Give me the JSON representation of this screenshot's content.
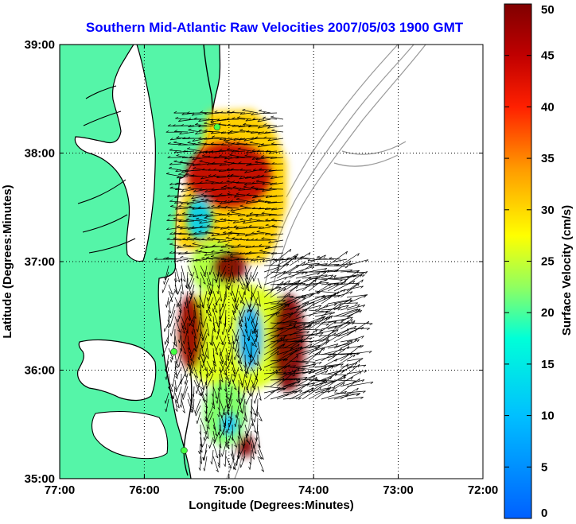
{
  "chart_data": {
    "type": "heatmap",
    "title": "Southern Mid-Atlantic Raw Velocities 2007/05/03 1900 GMT",
    "xlabel": "Longitude (Degrees:Minutes)",
    "ylabel": "Latitude (Degrees:Minutes)",
    "xlim": [
      -77,
      -72
    ],
    "ylim": [
      35,
      39
    ],
    "x_ticks": [
      -77,
      -76,
      -75,
      -74,
      -73,
      -72
    ],
    "x_tick_labels": [
      "77:00",
      "76:00",
      "75:00",
      "74:00",
      "73:00",
      "72:00"
    ],
    "y_ticks": [
      35,
      36,
      37,
      38,
      39
    ],
    "y_tick_labels": [
      "35:00",
      "36:00",
      "37:00",
      "38:00",
      "39:00"
    ],
    "grid": true,
    "colorbar": {
      "label": "Surface Velocity (cm/s)",
      "min": 0,
      "max": 50,
      "ticks": [
        0,
        5,
        10,
        15,
        20,
        25,
        30,
        35,
        40,
        45,
        50
      ],
      "tick_labels": [
        "0",
        "5",
        "10",
        "15",
        "20",
        "25",
        "30",
        "35",
        "40",
        "45",
        "50"
      ],
      "colormap": "jet"
    },
    "velocity_regions": [
      {
        "name": "north-band",
        "lon": [
          -75.5,
          -74.5
        ],
        "lat": [
          37.5,
          38.1
        ],
        "speed": 45
      },
      {
        "name": "north-cyan-patch",
        "lon": [
          -75.5,
          -75.2
        ],
        "lat": [
          37.2,
          37.6
        ],
        "speed": 12
      },
      {
        "name": "central-dark",
        "lon": [
          -75.2,
          -74.8
        ],
        "lat": [
          36.8,
          37.1
        ],
        "speed": 50
      },
      {
        "name": "central-blue",
        "lon": [
          -74.9,
          -74.6
        ],
        "lat": [
          36.0,
          36.6
        ],
        "speed": 8
      },
      {
        "name": "east-dark",
        "lon": [
          -74.5,
          -74.1
        ],
        "lat": [
          35.8,
          36.7
        ],
        "speed": 50
      },
      {
        "name": "west-dark",
        "lon": [
          -75.6,
          -75.3
        ],
        "lat": [
          36.0,
          36.7
        ],
        "speed": 48
      },
      {
        "name": "south-cyan",
        "lon": [
          -75.1,
          -74.9
        ],
        "lat": [
          35.4,
          35.6
        ],
        "speed": 10
      },
      {
        "name": "south-dark",
        "lon": [
          -74.9,
          -74.7
        ],
        "lat": [
          35.2,
          35.4
        ],
        "speed": 50
      }
    ],
    "stations": [
      {
        "lon": -75.14,
        "lat": 38.24
      },
      {
        "lon": -75.65,
        "lat": 36.17
      },
      {
        "lon": -75.53,
        "lat": 35.26
      }
    ]
  },
  "colors": {
    "title": "#0000ff",
    "land": "#55f5a8",
    "coast": "#000000",
    "bathymetry": "#999999",
    "station": "#44ff44"
  }
}
